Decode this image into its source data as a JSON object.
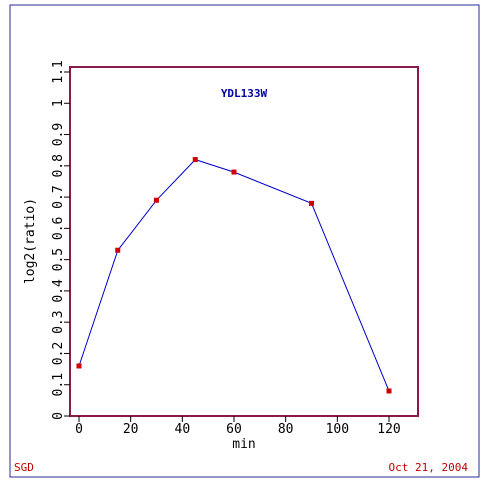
{
  "footer": {
    "left": "SGD",
    "right": "Oct 21, 2004"
  },
  "colors": {
    "frame": "#2a2a9a",
    "plot_border": "#8b1a4a",
    "line": "#0000c8",
    "marker": "#d00000",
    "title": "#0000a0",
    "footer": "#c00000"
  },
  "chart_data": {
    "type": "line",
    "title": "YDL133W",
    "xlabel": "min",
    "ylabel": "log2(ratio)",
    "xlim": [
      -5,
      130
    ],
    "ylim": [
      0,
      1.1
    ],
    "xticks": [
      0,
      20,
      40,
      60,
      80,
      100,
      120
    ],
    "xtick_labels": [
      "0",
      "20",
      "40",
      "60",
      "80",
      "100",
      "120"
    ],
    "yticks": [
      0,
      0.1,
      0.2,
      0.3,
      0.4,
      0.5,
      0.6,
      0.7,
      0.8,
      0.9,
      1,
      1.1
    ],
    "ytick_labels": [
      "0",
      "0.1",
      "0.2",
      "0.3",
      "0.4",
      "0.5",
      "0.6",
      "0.7",
      "0.8",
      "0.9",
      "1",
      "1.1"
    ],
    "grid": false,
    "series": [
      {
        "x": [
          0,
          15,
          30,
          45,
          60,
          90,
          120
        ],
        "y": [
          0.16,
          0.53,
          0.69,
          0.82,
          0.78,
          0.68,
          0.08
        ]
      }
    ]
  }
}
